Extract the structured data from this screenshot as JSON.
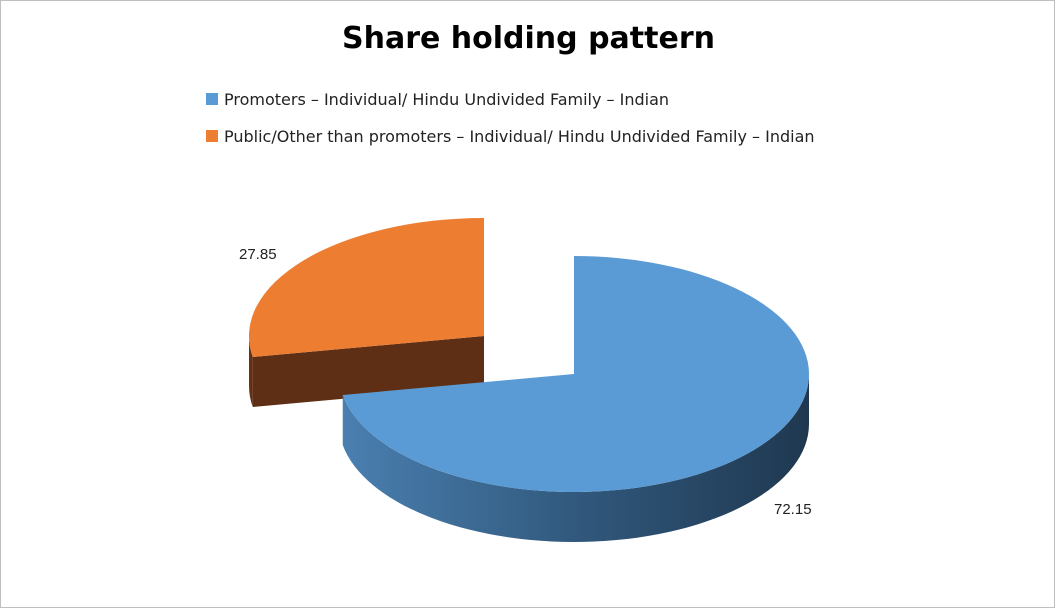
{
  "chart_data": {
    "type": "pie",
    "title": "Share holding pattern",
    "categories": [
      "Promoters – Individual/ Hindu Undivided Family – Indian",
      "Public/Other than promoters – Individual/ Hindu Undivided Family – Indian"
    ],
    "values": [
      72.15,
      27.85
    ],
    "colors": [
      "#5b9bd5",
      "#ed7d31"
    ],
    "legend_position": "top",
    "exploded": true,
    "three_d": true
  }
}
